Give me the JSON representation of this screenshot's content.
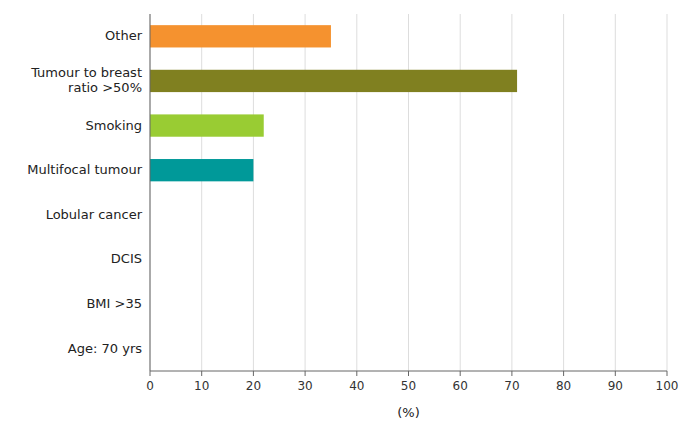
{
  "chart_data": {
    "type": "bar",
    "orientation": "horizontal",
    "categories": [
      "Other",
      "Tumour to breast\nratio >50%",
      "Smoking",
      "Multifocal tumour",
      "Lobular cancer",
      "DCIS",
      "BMI >35",
      "Age: 70 yrs"
    ],
    "values": [
      35,
      71,
      22,
      20,
      0,
      0,
      0,
      0
    ],
    "colors": [
      "#f5922f",
      "#808020",
      "#99cc33",
      "#009999",
      "#aaaaaa",
      "#aaaaaa",
      "#aaaaaa",
      "#aaaaaa"
    ],
    "xlabel": "(%)",
    "xlim": [
      0,
      100
    ],
    "xticks": [
      0,
      10,
      20,
      30,
      40,
      50,
      60,
      70,
      80,
      90,
      100
    ],
    "grid": true
  }
}
